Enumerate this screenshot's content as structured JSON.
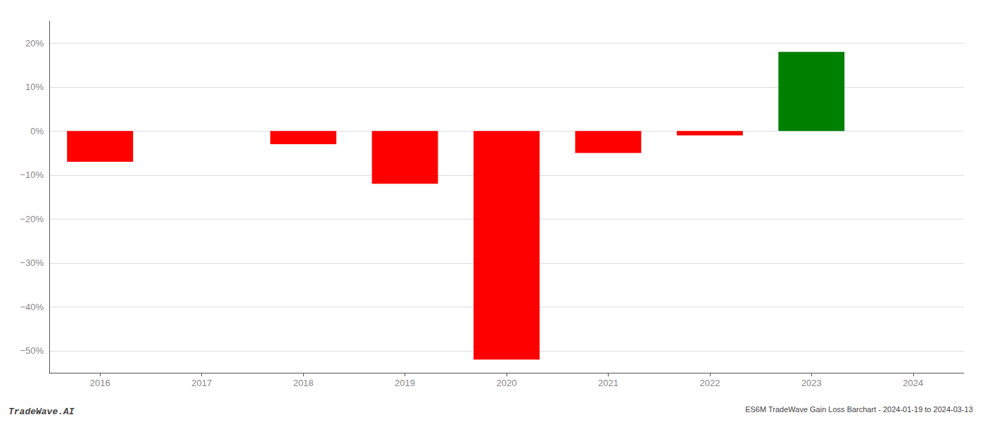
{
  "chart_data": {
    "type": "bar",
    "title": "ES6M TradeWave Gain Loss Barchart - 2024-01-19 to 2024-03-13",
    "annotations": [
      "TradeWave.AI"
    ],
    "categories": [
      "2016",
      "2017",
      "2018",
      "2019",
      "2020",
      "2021",
      "2022",
      "2023",
      "2024"
    ],
    "values": [
      -7.0,
      0.0,
      -3.0,
      -12.0,
      -52.0,
      -5.0,
      -1.0,
      18.0,
      0.0
    ],
    "colors": [
      "red",
      null,
      "red",
      "red",
      "red",
      "red",
      "red",
      "green",
      null
    ],
    "ylim": [
      -55,
      25
    ],
    "yticks": [
      {
        "value": -50,
        "label": "−50%"
      },
      {
        "value": -40,
        "label": "−40%"
      },
      {
        "value": -30,
        "label": "−30%"
      },
      {
        "value": -20,
        "label": "−20%"
      },
      {
        "value": -10,
        "label": "−10%"
      },
      {
        "value": 0,
        "label": "0%"
      },
      {
        "value": 10,
        "label": "10%"
      },
      {
        "value": 20,
        "label": "20%"
      }
    ],
    "grid": true
  }
}
